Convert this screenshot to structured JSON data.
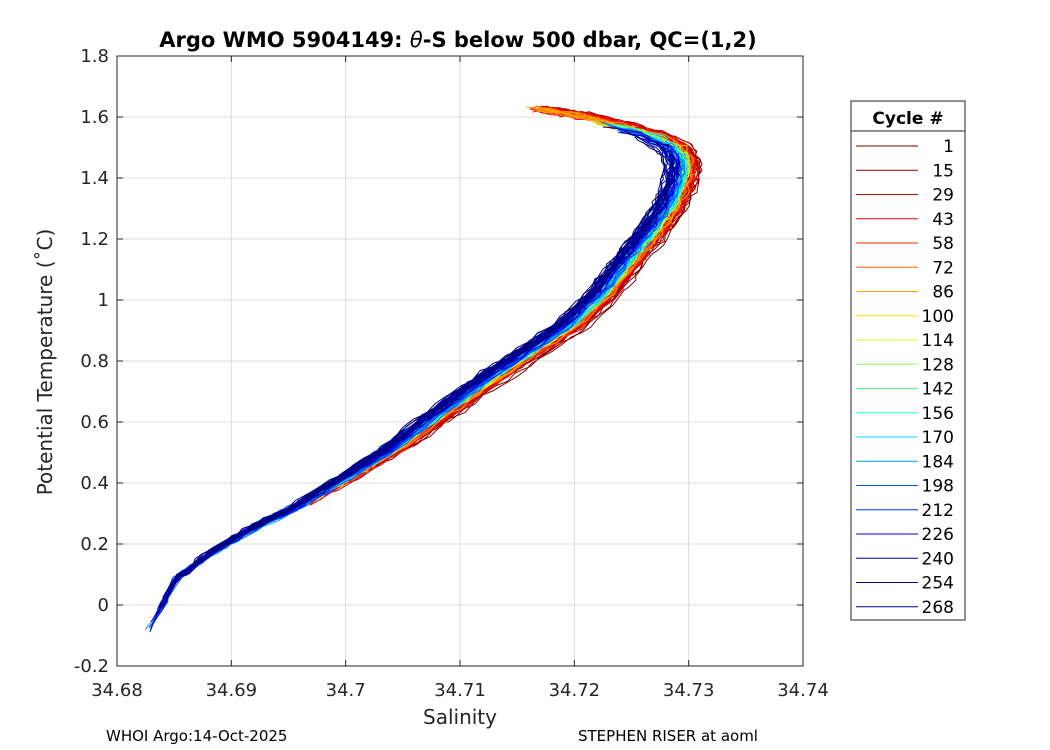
{
  "chart_data": {
    "type": "line",
    "title_prefix": "Argo WMO 5904149: ",
    "title_theta": "θ",
    "title_suffix": "-S below 500 dbar,  QC=(1,2)",
    "xlabel": "Salinity",
    "ylabel": "Potential Temperature (˚C)",
    "xlim": [
      34.68,
      34.74
    ],
    "ylim": [
      -0.2,
      1.8
    ],
    "xticks": [
      "34.68",
      "34.69",
      "34.7",
      "34.71",
      "34.72",
      "34.73",
      "34.74"
    ],
    "xtick_values": [
      34.68,
      34.69,
      34.7,
      34.71,
      34.72,
      34.73,
      34.74
    ],
    "yticks": [
      "-0.2",
      "0",
      "0.2",
      "0.4",
      "0.6",
      "0.8",
      "1",
      "1.2",
      "1.4",
      "1.6",
      "1.8"
    ],
    "ytick_values": [
      -0.2,
      0,
      0.2,
      0.4,
      0.6,
      0.8,
      1.0,
      1.2,
      1.4,
      1.6,
      1.8
    ],
    "grid": true,
    "legend_title": "Cycle #",
    "legend_placement": "outside-right",
    "legend": [
      {
        "label": "1",
        "color": "#800000"
      },
      {
        "label": "15",
        "color": "#a00000"
      },
      {
        "label": "29",
        "color": "#c00000"
      },
      {
        "label": "43",
        "color": "#e00000"
      },
      {
        "label": "58",
        "color": "#ff2000"
      },
      {
        "label": "72",
        "color": "#ff6000"
      },
      {
        "label": "86",
        "color": "#ffa000"
      },
      {
        "label": "100",
        "color": "#ffe000"
      },
      {
        "label": "114",
        "color": "#d0ff20"
      },
      {
        "label": "128",
        "color": "#90ff60"
      },
      {
        "label": "142",
        "color": "#50ff90"
      },
      {
        "label": "156",
        "color": "#20ffd0"
      },
      {
        "label": "170",
        "color": "#00e0ff"
      },
      {
        "label": "184",
        "color": "#00a0ff"
      },
      {
        "label": "198",
        "color": "#0060ff"
      },
      {
        "label": "212",
        "color": "#0030ff"
      },
      {
        "label": "226",
        "color": "#0000e0"
      },
      {
        "label": "240",
        "color": "#0000b0"
      },
      {
        "label": "254",
        "color": "#000090"
      },
      {
        "label": "268",
        "color": "#000080"
      }
    ],
    "curve": {
      "salinity": [
        34.6827,
        34.6852,
        34.688,
        34.692,
        34.696,
        34.7,
        34.704,
        34.708,
        34.712,
        34.716,
        34.72,
        34.723,
        34.725,
        34.727,
        34.7285,
        34.7295,
        34.7298,
        34.729,
        34.727,
        34.724,
        34.721,
        34.718,
        34.716
      ],
      "theta": [
        -0.09,
        0.08,
        0.16,
        0.25,
        0.32,
        0.41,
        0.5,
        0.61,
        0.72,
        0.82,
        0.92,
        1.03,
        1.13,
        1.22,
        1.3,
        1.38,
        1.45,
        1.5,
        1.54,
        1.57,
        1.6,
        1.62,
        1.63
      ]
    }
  },
  "footer": {
    "left": "WHOI Argo:14-Oct-2025",
    "right": "STEPHEN RISER at aoml"
  }
}
